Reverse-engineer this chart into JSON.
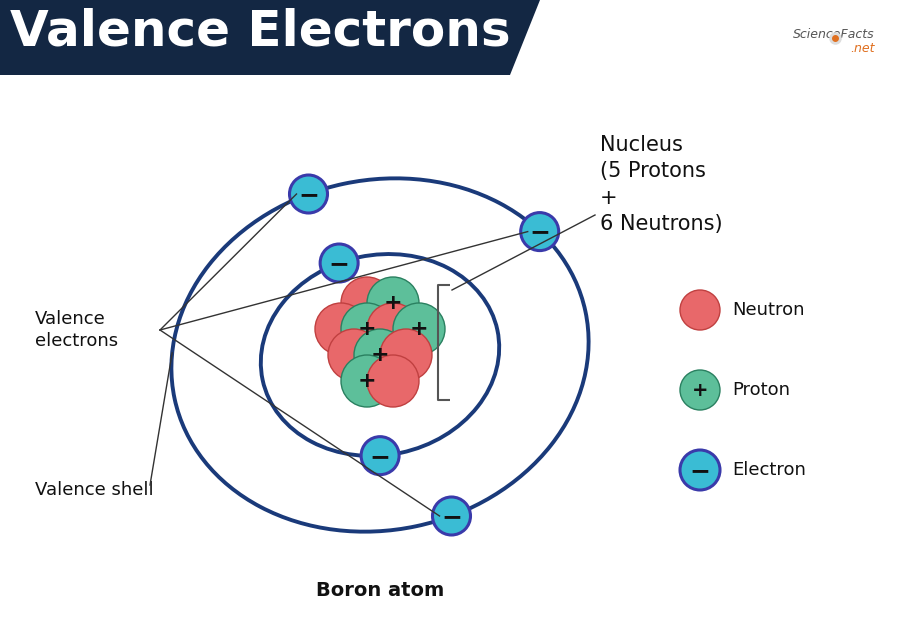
{
  "title": "Valence Electrons",
  "title_bg_color": "#132743",
  "title_text_color": "#ffffff",
  "bg_color": "#ffffff",
  "atom_label": "Boron atom",
  "nucleus_label": "Nucleus\n(5 Protons\n+\n6 Neutrons)",
  "valence_electrons_label": "Valence\nelectrons",
  "valence_shell_label": "Valence shell",
  "legend_neutron": "Neutron",
  "legend_proton": "Proton",
  "legend_electron": "Electron",
  "neutron_color": "#e8686a",
  "neutron_edge": "#c04040",
  "proton_color": "#5dbf9a",
  "proton_edge": "#2a8060",
  "electron_face_color": "#3abcd4",
  "electron_edge_color": "#3a3aaa",
  "orbit_color": "#1a3a7a",
  "orbit_lw": 2.8,
  "label_color": "#111111"
}
